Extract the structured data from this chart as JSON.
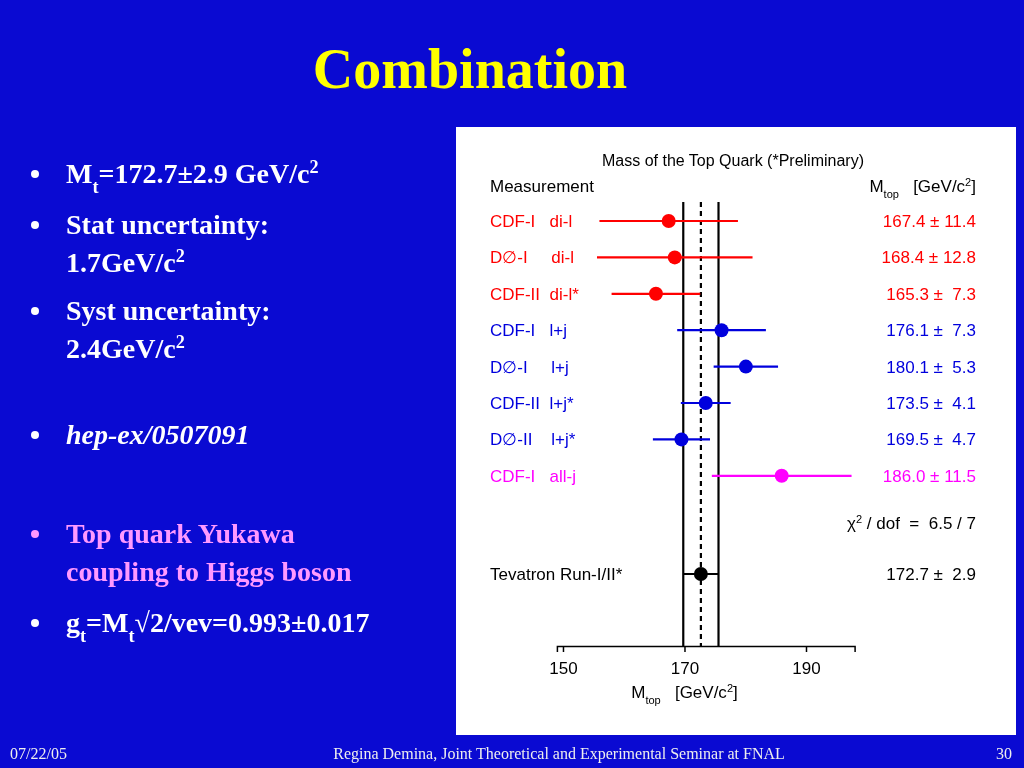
{
  "chart_data": {
    "type": "scatter",
    "orientation": "horizontal",
    "title": "Combination",
    "subtitle": "Mass of the Top Quark (*Preliminary)",
    "xlabel": "M$_{top}$   [GeV/c$^{2}$]",
    "categories": [
      "CDF-I   di-l",
      "D∅-I     di-l",
      "CDF-II  di-l*",
      "CDF-I   l+j",
      "D∅-I     l+j",
      "CDF-II  l+j*",
      "D∅-II    l+j*",
      "CDF-I   all-j",
      null,
      "Tevatron Run-I/II*"
    ],
    "values": [
      167.4,
      168.4,
      165.3,
      176.1,
      180.1,
      173.5,
      169.5,
      186.0,
      null,
      172.7
    ],
    "errors": [
      11.4,
      12.8,
      7.3,
      7.3,
      5.3,
      4.1,
      4.7,
      11.5,
      null,
      2.9
    ],
    "colors": [
      "#ff0000",
      "#ff0000",
      "#ff0000",
      "#0000dd",
      "#0000dd",
      "#0000dd",
      "#0000dd",
      "#ff00ff",
      null,
      "#000000"
    ],
    "value_labels": [
      "167.4 ± 11.4",
      "168.4 ± 12.8",
      "165.3 ±  7.3",
      "176.1 ±  7.3",
      "180.1 ±  5.3",
      "173.5 ±  4.1",
      "169.5 ±  4.7",
      "186.0 ± 11.5",
      null,
      "172.7 ±  2.9"
    ],
    "marker": "circle",
    "xlim": [
      149,
      198
    ],
    "xticks": [
      150,
      170,
      190
    ],
    "ref_lines": [
      {
        "axis": "x",
        "value": 172.7,
        "color": "#000000",
        "line_style": "dashed"
      },
      {
        "axis": "x",
        "value": 169.8,
        "color": "#000000",
        "line_style": "solid"
      },
      {
        "axis": "x",
        "value": 175.6,
        "color": "#000000",
        "line_style": "solid"
      }
    ],
    "annotations": [
      "Measurement",
      "M$_{top}$   [GeV/c$^{2}$]",
      "χ$^{2}$ / dof  =  6.5 / 7",
      "M$_{t}$=172.7±2.9 GeV/c$^{2}$",
      "Stat uncertainty:\n1.7GeV/c$^{2}$",
      "Syst uncertainty:\n2.4GeV/c$^{2}$",
      "hep-ex/0507091",
      "Top quark Yukawa\ncoupling to Higgs boson",
      "g$_{t}$=M$_{t}$√2/vev=0.993±0.017",
      "07/22/05",
      "Regina Demina, Joint Theoretical and Experimental Seminar at FNAL",
      "30"
    ]
  }
}
